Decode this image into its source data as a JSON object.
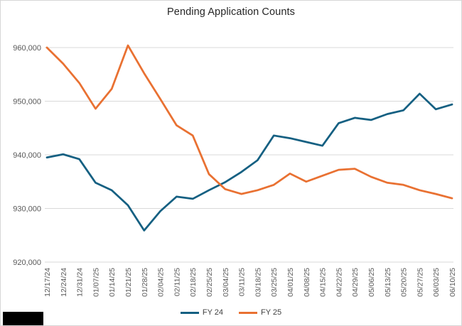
{
  "chart_data": {
    "type": "line",
    "title": "Pending Application Counts",
    "x": [
      "12/17/24",
      "12/24/24",
      "12/31/24",
      "01/07/25",
      "01/14/25",
      "01/21/25",
      "01/28/25",
      "02/04/25",
      "02/11/25",
      "02/18/25",
      "02/25/25",
      "03/04/25",
      "03/11/25",
      "03/18/25",
      "03/25/25",
      "04/01/25",
      "04/08/25",
      "04/15/25",
      "04/22/25",
      "04/29/25",
      "05/06/25",
      "05/13/25",
      "05/20/25",
      "05/27/25",
      "06/03/25",
      "06/10/25"
    ],
    "series": [
      {
        "name": "FY 24",
        "color": "#156082",
        "values": [
          939500,
          940100,
          939200,
          934800,
          933400,
          930600,
          925900,
          929500,
          932200,
          931800,
          933400,
          934900,
          936800,
          939000,
          943600,
          943100,
          942400,
          941700,
          945900,
          946900,
          946500,
          947600,
          948300,
          951400,
          948500,
          949400
        ]
      },
      {
        "name": "FY 25",
        "color": "#E97132",
        "values": [
          960000,
          957000,
          953400,
          948600,
          952300,
          960400,
          955200,
          950400,
          945500,
          943600,
          936400,
          933600,
          932700,
          933400,
          934400,
          936500,
          935000,
          936100,
          937200,
          937400,
          935900,
          934800,
          934400,
          933400,
          932700,
          931900
        ]
      }
    ],
    "ylim": [
      920000,
      965000
    ],
    "yticks": [
      920000,
      930000,
      940000,
      950000,
      960000
    ],
    "ytick_labels": [
      "920,000",
      "930,000",
      "940,000",
      "950,000",
      "960,000"
    ],
    "grid": true,
    "legend_position": "bottom",
    "colors": {
      "gridline": "#d9d9d9",
      "axis_label": "#595959",
      "title": "#262626"
    }
  }
}
